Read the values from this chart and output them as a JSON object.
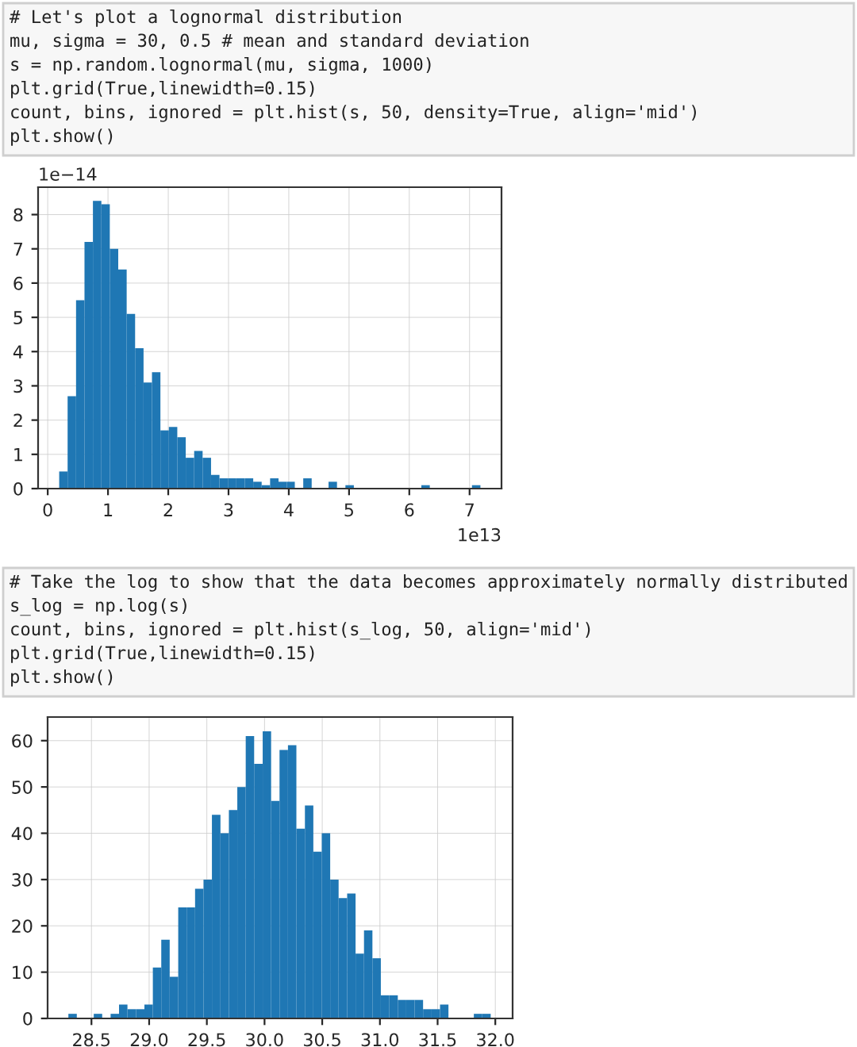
{
  "chart_data": [
    {
      "type": "histogram",
      "title": "# Let's plot a lognormal distribution\nmu, sigma = 30, 0.5 # mean and standard deviation\ns = np.random.lognormal(mu, sigma, 1000)\nplt.grid(True,linewidth=0.15)\ncount, bins, ignored = plt.hist(s, 50, density=True, align='mid')\nplt.show()",
      "bins": [
        0.19,
        0.33,
        0.47,
        0.61,
        0.75,
        0.89,
        1.03,
        1.17,
        1.31,
        1.45,
        1.59,
        1.73,
        1.87,
        2.01,
        2.15,
        2.29,
        2.43,
        2.57,
        2.71,
        2.85,
        2.99,
        3.13,
        3.27,
        3.41,
        3.55,
        3.69,
        3.83,
        3.97,
        4.1,
        4.24,
        4.38,
        4.66,
        4.8,
        4.94,
        5.08,
        6.2,
        6.34,
        7.04,
        7.18
      ],
      "values": [
        0.5,
        2.7,
        5.5,
        7.2,
        8.4,
        8.3,
        7.0,
        6.4,
        5.1,
        4.1,
        3.1,
        3.4,
        1.7,
        1.8,
        1.5,
        0.9,
        1.1,
        0.9,
        0.4,
        0.3,
        0.3,
        0.3,
        0.3,
        0.2,
        0.1,
        0.3,
        0.2,
        0.2,
        0,
        0.3,
        0,
        0.2,
        0,
        0.1,
        0,
        0.1,
        0,
        0.1
      ],
      "color": "#1f77b4",
      "xlim": [
        -0.16,
        7.53
      ],
      "xticks": [
        0,
        1,
        2,
        3,
        4,
        5,
        6,
        7
      ],
      "ylim": [
        0,
        8.8
      ],
      "yticks": [
        0,
        1,
        2,
        3,
        4,
        5,
        6,
        7,
        8
      ],
      "grid": true,
      "annotations": [
        "1e−14",
        "1e13"
      ]
    },
    {
      "type": "histogram",
      "title": "# Take the log to show that the data becomes approximately normally distributed\ns_log = np.log(s)\ncount, bins, ignored = plt.hist(s_log, 50, align='mid')\nplt.grid(True,linewidth=0.15)\nplt.show()",
      "bins": [
        28.3,
        28.373,
        28.446,
        28.52,
        28.593,
        28.666,
        28.739,
        28.812,
        28.886,
        28.959,
        29.032,
        29.105,
        29.178,
        29.252,
        29.325,
        29.398,
        29.471,
        29.544,
        29.618,
        29.691,
        29.764,
        29.837,
        29.91,
        29.984,
        30.057,
        30.13,
        30.203,
        30.276,
        30.35,
        30.423,
        30.496,
        30.569,
        30.642,
        30.716,
        30.789,
        30.862,
        30.935,
        31.008,
        31.082,
        31.155,
        31.228,
        31.301,
        31.374,
        31.448,
        31.521,
        31.594,
        31.667,
        31.74,
        31.814,
        31.887,
        31.96
      ],
      "values": [
        1,
        0,
        0,
        1,
        0,
        1,
        3,
        2,
        2,
        3,
        11,
        17,
        9,
        24,
        24,
        28,
        30,
        44,
        40,
        45,
        50,
        61,
        55,
        62,
        47,
        58,
        59,
        41,
        46,
        36,
        40,
        30,
        26,
        27,
        14,
        19,
        13,
        5,
        5,
        4,
        4,
        4,
        2,
        2,
        3,
        0,
        0,
        0,
        1,
        1
      ],
      "color": "#1f77b4",
      "xlim": [
        28.12,
        32.15
      ],
      "xticks": [
        {
          "value": 28.5,
          "label": "28.5"
        },
        {
          "value": 29.0,
          "label": "29.0"
        },
        {
          "value": 29.5,
          "label": "29.5"
        },
        {
          "value": 30.0,
          "label": "30.0"
        },
        {
          "value": 30.5,
          "label": "30.5"
        },
        {
          "value": 31.0,
          "label": "31.0"
        },
        {
          "value": 31.5,
          "label": "31.5"
        },
        {
          "value": 32.0,
          "label": "32.0"
        }
      ],
      "ylim": [
        0,
        65.1
      ],
      "yticks": [
        0,
        10,
        20,
        30,
        40,
        50,
        60
      ],
      "grid": true
    }
  ]
}
